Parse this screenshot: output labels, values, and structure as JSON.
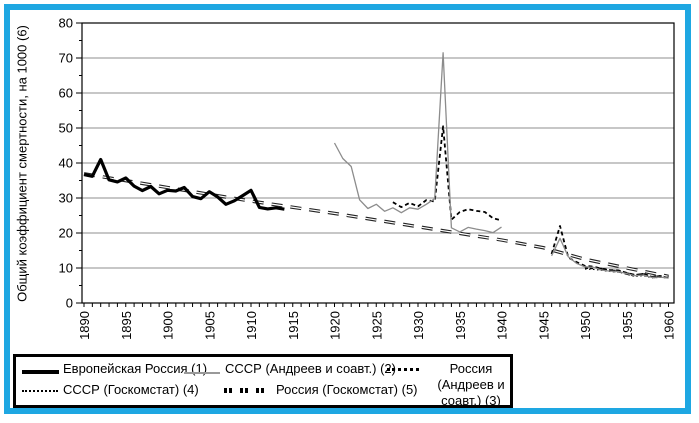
{
  "frame": {
    "border_color": "#1ea7e2",
    "background": "#ffffff"
  },
  "chart_data": {
    "type": "line",
    "title": "",
    "xlabel": "",
    "ylabel": "Общий коэффициент смертности, на 1000 (6)",
    "ylim": [
      0,
      80
    ],
    "xlim": [
      1890,
      1960
    ],
    "y_ticks": [
      0,
      10,
      20,
      30,
      40,
      50,
      60,
      70,
      80
    ],
    "x_ticks": [
      1890,
      1895,
      1900,
      1905,
      1910,
      1915,
      1920,
      1925,
      1930,
      1935,
      1940,
      1945,
      1950,
      1955,
      1960
    ],
    "grid": "horizontal",
    "gridline_color": "#8f8f8f",
    "legend_position": "bottom",
    "series": [
      {
        "id": "eur_russia",
        "label": "Европейская Россия (1)",
        "style": "thick-solid",
        "color": "#000000",
        "segments": [
          [
            [
              1890,
              36.7
            ],
            [
              1891,
              36.2
            ],
            [
              1892,
              41.0
            ],
            [
              1893,
              35.2
            ],
            [
              1894,
              34.6
            ],
            [
              1895,
              35.7
            ],
            [
              1896,
              33.4
            ],
            [
              1897,
              32.1
            ],
            [
              1898,
              33.3
            ],
            [
              1899,
              31.2
            ],
            [
              1900,
              32.2
            ],
            [
              1901,
              32.0
            ],
            [
              1902,
              33.0
            ],
            [
              1903,
              30.4
            ],
            [
              1904,
              29.8
            ],
            [
              1905,
              31.8
            ],
            [
              1906,
              30.3
            ],
            [
              1907,
              28.2
            ],
            [
              1908,
              29.2
            ],
            [
              1909,
              30.7
            ],
            [
              1910,
              32.2
            ],
            [
              1911,
              27.3
            ],
            [
              1912,
              26.9
            ],
            [
              1913,
              27.2
            ],
            [
              1914,
              26.8
            ]
          ]
        ]
      },
      {
        "id": "ussr_andreev",
        "label": "СССР (Андреев и соавт.) (2)",
        "style": "thin-solid",
        "color": "#8c8c8c",
        "segments": [
          [
            [
              1920,
              45.7
            ],
            [
              1921,
              41.3
            ],
            [
              1922,
              39.0
            ],
            [
              1923,
              29.5
            ],
            [
              1924,
              27.0
            ],
            [
              1925,
              28.2
            ],
            [
              1926,
              26.2
            ],
            [
              1927,
              27.2
            ],
            [
              1928,
              25.8
            ],
            [
              1929,
              27.2
            ],
            [
              1930,
              26.8
            ],
            [
              1931,
              28.2
            ],
            [
              1932,
              29.8
            ],
            [
              1933,
              71.5
            ],
            [
              1934,
              21.5
            ],
            [
              1935,
              20.3
            ],
            [
              1936,
              21.6
            ],
            [
              1937,
              21.1
            ],
            [
              1938,
              20.7
            ],
            [
              1939,
              20.1
            ],
            [
              1940,
              21.7
            ]
          ],
          [
            [
              1946,
              13.5
            ],
            [
              1947,
              18.5
            ],
            [
              1948,
              13.2
            ],
            [
              1949,
              11.3
            ],
            [
              1950,
              10.3
            ],
            [
              1951,
              10.2
            ],
            [
              1952,
              9.4
            ],
            [
              1953,
              9.1
            ],
            [
              1954,
              9.0
            ],
            [
              1955,
              8.4
            ],
            [
              1956,
              7.8
            ],
            [
              1957,
              8.0
            ],
            [
              1958,
              7.3
            ],
            [
              1959,
              7.4
            ],
            [
              1960,
              7.1
            ]
          ]
        ]
      },
      {
        "id": "russia_andreev",
        "label": "Россия (Андреев и соавт.) (3)",
        "style": "bold-dotted",
        "color": "#000000",
        "segments": [
          [
            [
              1927,
              28.8
            ],
            [
              1928,
              27.4
            ],
            [
              1929,
              28.6
            ],
            [
              1930,
              27.6
            ],
            [
              1931,
              29.4
            ],
            [
              1932,
              29.0
            ],
            [
              1933,
              50.5
            ],
            [
              1934,
              23.8
            ],
            [
              1935,
              26.0
            ],
            [
              1936,
              26.8
            ],
            [
              1937,
              26.3
            ],
            [
              1938,
              26.0
            ],
            [
              1939,
              24.2
            ],
            [
              1940,
              23.6
            ]
          ],
          [
            [
              1946,
              14.0
            ],
            [
              1947,
              22.0
            ],
            [
              1948,
              13.0
            ],
            [
              1949,
              11.7
            ],
            [
              1950,
              10.6
            ],
            [
              1951,
              10.4
            ],
            [
              1952,
              9.8
            ],
            [
              1953,
              9.4
            ],
            [
              1954,
              9.3
            ],
            [
              1955,
              8.6
            ],
            [
              1956,
              8.0
            ],
            [
              1957,
              8.3
            ],
            [
              1958,
              7.5
            ],
            [
              1959,
              7.7
            ]
          ]
        ]
      },
      {
        "id": "ussr_goskomstat",
        "label": "СССР (Госкомстат) (4)",
        "style": "fine-dotted",
        "color": "#000000",
        "segments": [
          [
            [
              1950,
              9.7
            ],
            [
              1951,
              9.6
            ],
            [
              1952,
              9.3
            ],
            [
              1953,
              9.0
            ],
            [
              1954,
              8.9
            ],
            [
              1955,
              8.2
            ],
            [
              1956,
              7.6
            ],
            [
              1957,
              7.8
            ],
            [
              1958,
              7.2
            ],
            [
              1959,
              7.3
            ],
            [
              1960,
              7.1
            ]
          ]
        ]
      },
      {
        "id": "russia_goskomstat",
        "label": "Россия (Госкомстат) (5)",
        "style": "dash-pair",
        "color": "#000000",
        "segments": [
          [
            [
              1950,
              10.1
            ],
            [
              1951,
              10.0
            ],
            [
              1952,
              9.7
            ],
            [
              1953,
              9.2
            ],
            [
              1954,
              9.1
            ],
            [
              1955,
              8.4
            ],
            [
              1956,
              7.9
            ],
            [
              1957,
              8.2
            ],
            [
              1958,
              7.4
            ],
            [
              1959,
              7.6
            ],
            [
              1960,
              7.4
            ]
          ]
        ]
      },
      {
        "id": "trend",
        "label": "(6)",
        "style": "long-dash-thick",
        "color": "#222222",
        "segments": [
          [
            [
              1890,
              36.9
            ],
            [
              1900,
              33.0
            ],
            [
              1910,
              29.1
            ],
            [
              1920,
              25.6
            ],
            [
              1930,
              21.8
            ],
            [
              1940,
              18.0
            ],
            [
              1945,
              15.8
            ],
            [
              1950,
              12.5
            ],
            [
              1955,
              10.0
            ],
            [
              1960,
              7.6
            ]
          ]
        ]
      }
    ]
  }
}
